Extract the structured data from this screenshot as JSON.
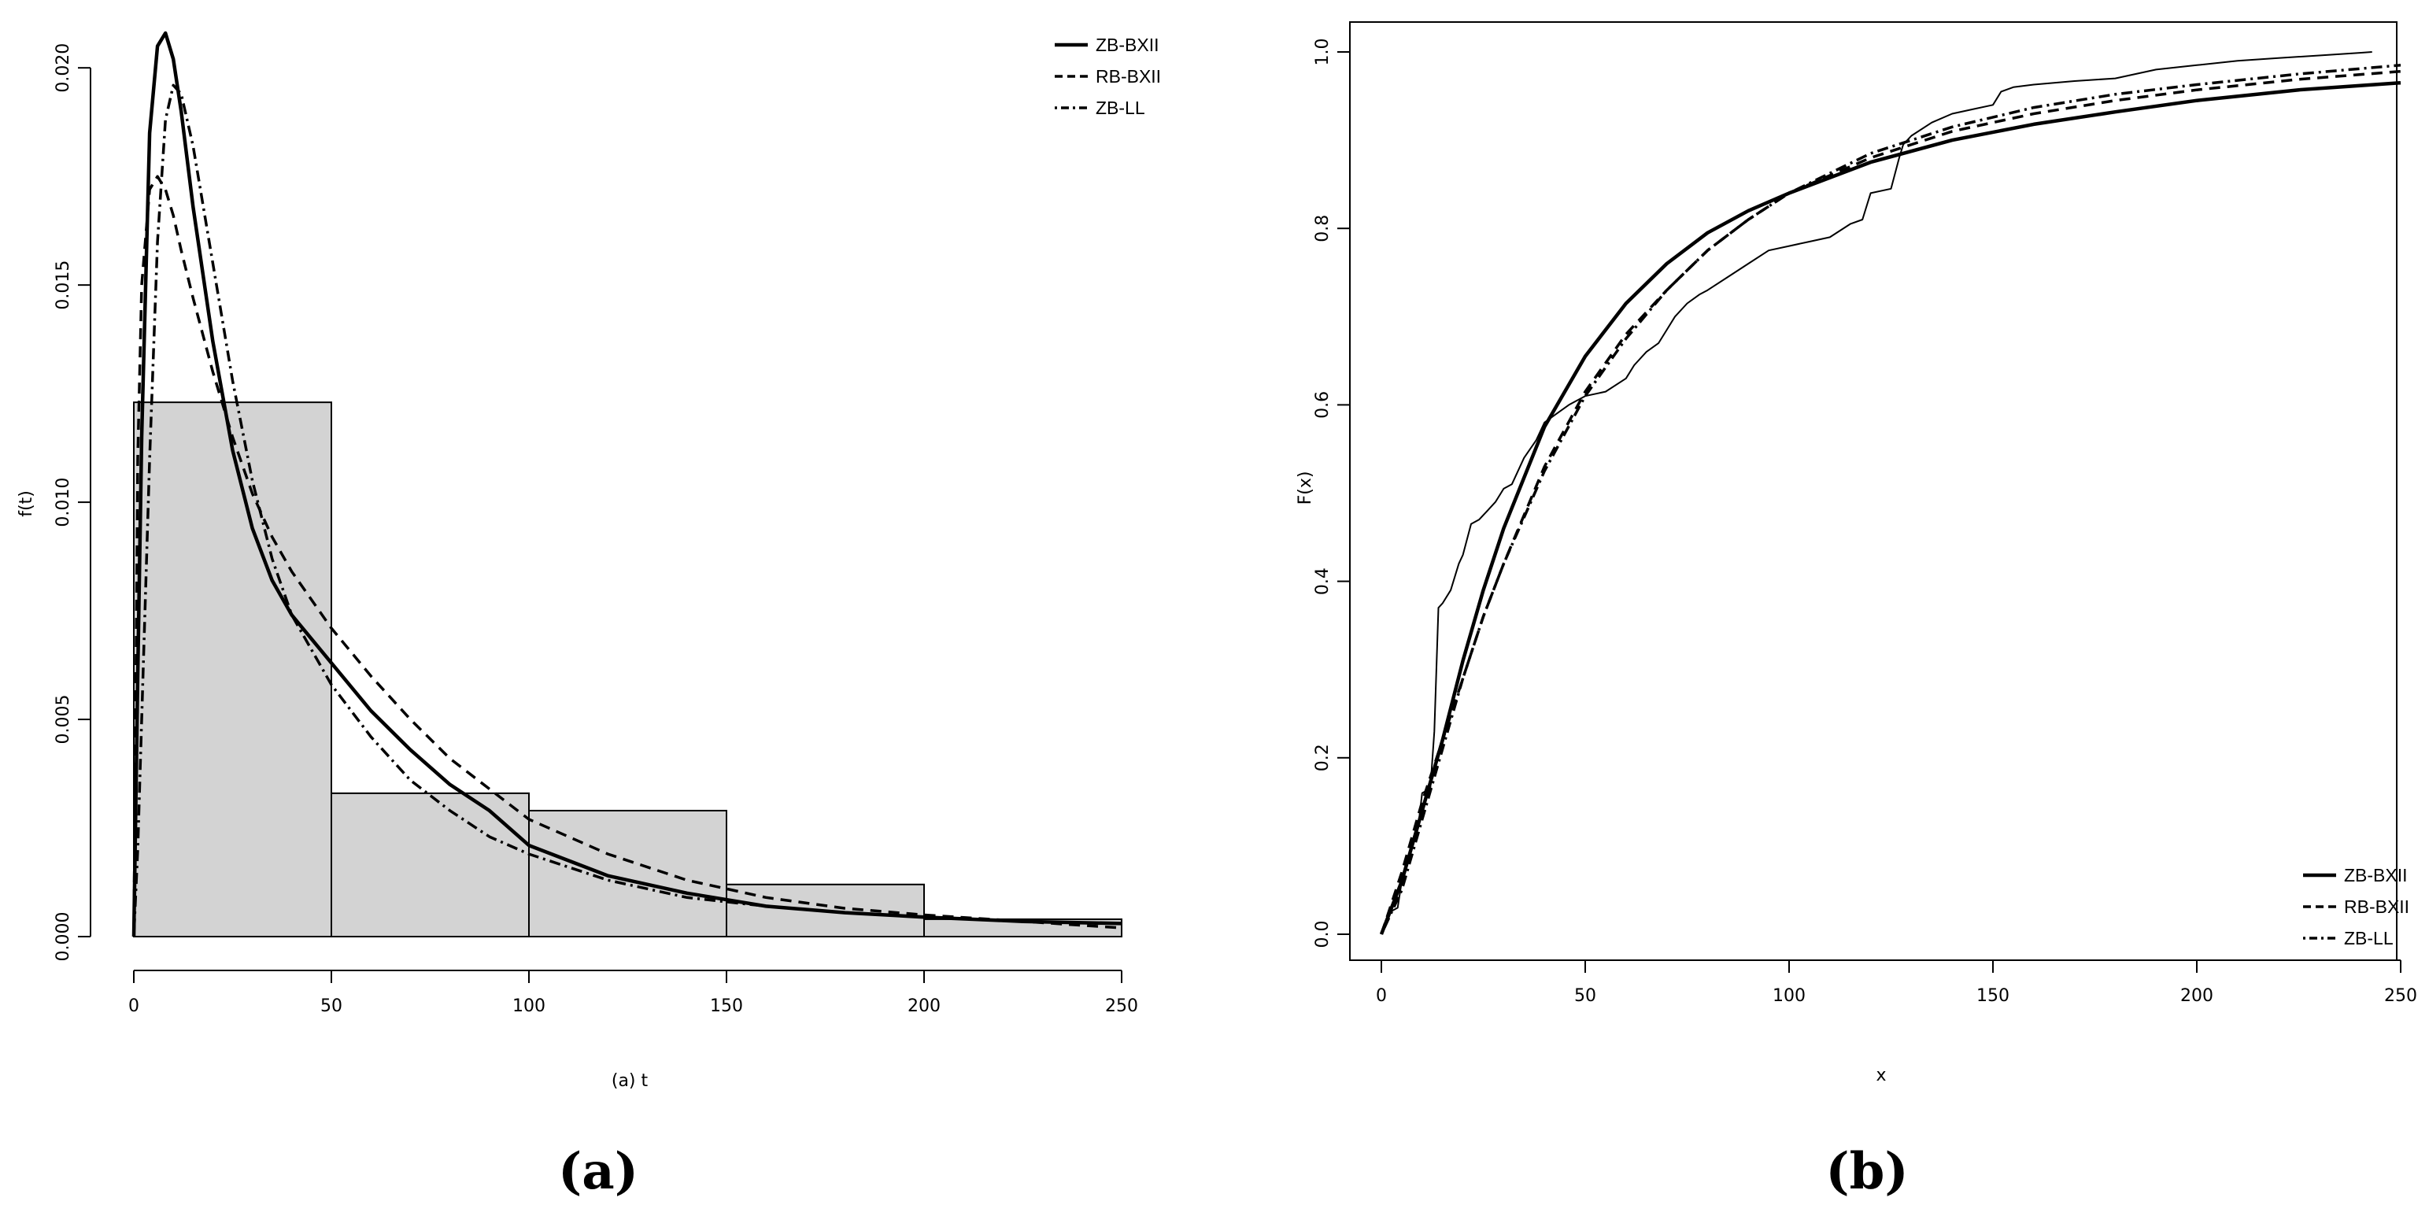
{
  "panels": {
    "a": {
      "label": "(a)"
    },
    "b": {
      "label": "(b)"
    }
  },
  "chart_data": [
    {
      "type": "histogram",
      "title": "",
      "xlabel": "(a) t",
      "ylabel": "f(t)",
      "xlim": [
        0,
        250
      ],
      "ylim": [
        0,
        0.021
      ],
      "x_ticks": [
        0,
        50,
        100,
        150,
        200,
        250
      ],
      "y_ticks": [
        0.0,
        0.005,
        0.01,
        0.015,
        0.02
      ],
      "y_tick_labels": [
        "0.000",
        "0.005",
        "0.010",
        "0.015",
        "0.020"
      ],
      "grid": false,
      "legend": {
        "position": "top-right",
        "entries": [
          "ZB-BXII",
          "RB-BXII",
          "ZB-LL"
        ]
      },
      "bars": [
        {
          "from": 0,
          "to": 50,
          "density": 0.0123
        },
        {
          "from": 50,
          "to": 100,
          "density": 0.0033
        },
        {
          "from": 100,
          "to": 150,
          "density": 0.0029
        },
        {
          "from": 150,
          "to": 200,
          "density": 0.0012
        },
        {
          "from": 200,
          "to": 250,
          "density": 0.0004
        }
      ],
      "series": [
        {
          "name": "ZB-BXII",
          "style": "solid",
          "x": [
            0,
            1,
            2,
            4,
            6,
            8,
            10,
            12,
            15,
            20,
            25,
            30,
            35,
            40,
            50,
            60,
            70,
            80,
            90,
            100,
            120,
            140,
            160,
            180,
            200,
            225,
            250
          ],
          "y": [
            0.0,
            0.006,
            0.0115,
            0.0185,
            0.0205,
            0.0208,
            0.0202,
            0.019,
            0.0168,
            0.0137,
            0.0112,
            0.0094,
            0.0082,
            0.0074,
            0.0063,
            0.0052,
            0.0043,
            0.0035,
            0.0029,
            0.0021,
            0.0014,
            0.001,
            0.0007,
            0.00055,
            0.00045,
            0.00035,
            0.0003
          ]
        },
        {
          "name": "RB-BXII",
          "style": "dashed",
          "x": [
            0,
            1,
            2,
            4,
            6,
            8,
            10,
            12,
            15,
            20,
            25,
            30,
            35,
            40,
            50,
            60,
            70,
            80,
            90,
            100,
            120,
            140,
            160,
            180,
            200,
            225,
            250
          ],
          "y": [
            0.0,
            0.011,
            0.015,
            0.0172,
            0.0175,
            0.0172,
            0.0166,
            0.0158,
            0.0147,
            0.013,
            0.0115,
            0.0102,
            0.0092,
            0.0084,
            0.0071,
            0.006,
            0.005,
            0.0041,
            0.0034,
            0.0027,
            0.0019,
            0.0013,
            0.0009,
            0.00065,
            0.0005,
            0.00035,
            0.0002
          ]
        },
        {
          "name": "ZB-LL",
          "style": "dotdash",
          "x": [
            0,
            1,
            2,
            4,
            6,
            8,
            10,
            12,
            15,
            20,
            25,
            30,
            35,
            40,
            50,
            60,
            70,
            80,
            90,
            100,
            120,
            140,
            160,
            180,
            200,
            225,
            250
          ],
          "y": [
            0.0,
            0.002,
            0.005,
            0.011,
            0.016,
            0.0188,
            0.0196,
            0.0194,
            0.0182,
            0.0155,
            0.0128,
            0.0105,
            0.0087,
            0.0074,
            0.0058,
            0.0046,
            0.0036,
            0.0029,
            0.0023,
            0.0019,
            0.0013,
            0.0009,
            0.0007,
            0.00055,
            0.00045,
            0.00035,
            0.0003
          ]
        }
      ]
    },
    {
      "type": "line",
      "title": "",
      "xlabel": "x",
      "ylabel": "F(x)",
      "xlim": [
        0,
        250
      ],
      "ylim": [
        0,
        1.0
      ],
      "x_ticks": [
        0,
        50,
        100,
        150,
        200,
        250
      ],
      "y_ticks": [
        0.0,
        0.2,
        0.4,
        0.6,
        0.8,
        1.0
      ],
      "y_tick_labels": [
        "0.0",
        "0.2",
        "0.4",
        "0.6",
        "0.8",
        "1.0"
      ],
      "grid": false,
      "legend": {
        "position": "bottom-right",
        "entries": [
          "ZB-BXII",
          "RB-BXII",
          "ZB-LL"
        ]
      },
      "series": [
        {
          "name": "",
          "style": "thin-step",
          "x": [
            0,
            1,
            2,
            4,
            5,
            7,
            9,
            10,
            12,
            13,
            14,
            15,
            17,
            19,
            20,
            22,
            24,
            26,
            28,
            30,
            32,
            35,
            38,
            40,
            43,
            46,
            50,
            55,
            60,
            62,
            65,
            68,
            70,
            72,
            75,
            78,
            80,
            85,
            90,
            95,
            100,
            105,
            110,
            115,
            118,
            120,
            125,
            127,
            128,
            130,
            135,
            140,
            145,
            150,
            152,
            155,
            160,
            170,
            180,
            185,
            190,
            200,
            210,
            220,
            230,
            240,
            243
          ],
          "y": [
            0.0,
            0.015,
            0.025,
            0.03,
            0.06,
            0.09,
            0.12,
            0.16,
            0.165,
            0.23,
            0.37,
            0.375,
            0.39,
            0.42,
            0.43,
            0.465,
            0.47,
            0.48,
            0.49,
            0.505,
            0.51,
            0.54,
            0.56,
            0.58,
            0.59,
            0.6,
            0.61,
            0.615,
            0.63,
            0.645,
            0.66,
            0.67,
            0.685,
            0.7,
            0.715,
            0.725,
            0.73,
            0.745,
            0.76,
            0.775,
            0.78,
            0.785,
            0.79,
            0.805,
            0.81,
            0.84,
            0.845,
            0.88,
            0.895,
            0.905,
            0.92,
            0.93,
            0.935,
            0.94,
            0.955,
            0.96,
            0.963,
            0.967,
            0.97,
            0.975,
            0.98,
            0.985,
            0.99,
            0.993,
            0.996,
            0.999,
            1.0
          ]
        },
        {
          "name": "ZB-BXII",
          "style": "solid",
          "x": [
            0,
            5,
            10,
            15,
            20,
            25,
            30,
            40,
            50,
            60,
            70,
            80,
            90,
            100,
            120,
            140,
            160,
            180,
            200,
            225,
            250
          ],
          "y": [
            0.0,
            0.06,
            0.14,
            0.22,
            0.31,
            0.39,
            0.46,
            0.575,
            0.655,
            0.715,
            0.76,
            0.795,
            0.82,
            0.84,
            0.875,
            0.9,
            0.918,
            0.932,
            0.945,
            0.957,
            0.965
          ]
        },
        {
          "name": "RB-BXII",
          "style": "dashed",
          "x": [
            0,
            5,
            10,
            15,
            20,
            25,
            30,
            40,
            50,
            60,
            70,
            80,
            90,
            100,
            120,
            140,
            160,
            180,
            200,
            225,
            250
          ],
          "y": [
            0.0,
            0.07,
            0.15,
            0.22,
            0.29,
            0.36,
            0.42,
            0.53,
            0.615,
            0.68,
            0.73,
            0.775,
            0.81,
            0.84,
            0.88,
            0.91,
            0.93,
            0.945,
            0.957,
            0.969,
            0.978
          ]
        },
        {
          "name": "ZB-LL",
          "style": "dotdash",
          "x": [
            0,
            5,
            10,
            15,
            20,
            25,
            30,
            40,
            50,
            60,
            70,
            80,
            90,
            100,
            120,
            140,
            160,
            180,
            200,
            225,
            250
          ],
          "y": [
            0.0,
            0.05,
            0.13,
            0.21,
            0.29,
            0.36,
            0.42,
            0.525,
            0.61,
            0.675,
            0.73,
            0.775,
            0.81,
            0.84,
            0.885,
            0.915,
            0.937,
            0.952,
            0.963,
            0.975,
            0.985
          ]
        }
      ]
    }
  ]
}
